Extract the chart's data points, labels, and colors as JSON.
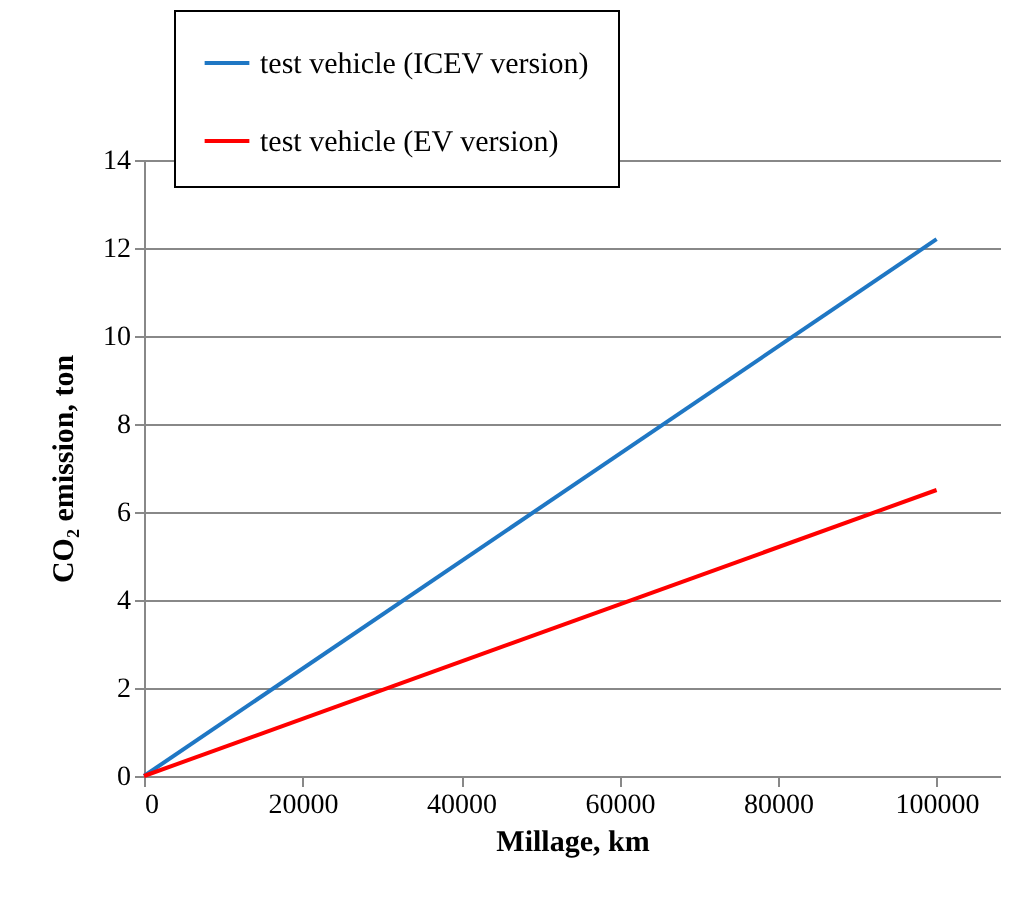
{
  "chart_data": {
    "type": "line",
    "xlabel": "Millage, km",
    "ylabel": "CO₂ emission, ton",
    "x": [
      0,
      100000
    ],
    "series": [
      {
        "name": "test vehicle (ICEV version)",
        "color": "#1f77c4",
        "values": [
          0,
          12.2
        ]
      },
      {
        "name": "test vehicle (EV version)",
        "color": "#ff0000",
        "values": [
          0,
          6.5
        ]
      }
    ],
    "xlim": [
      0,
      108000
    ],
    "xticks": [
      0,
      20000,
      40000,
      60000,
      80000,
      100000
    ],
    "ylim": [
      0,
      14
    ],
    "yticks": [
      0,
      2,
      4,
      6,
      8,
      10,
      12,
      14
    ],
    "grid": "y",
    "legend": "top",
    "marker": "none",
    "line_style": "solid"
  }
}
